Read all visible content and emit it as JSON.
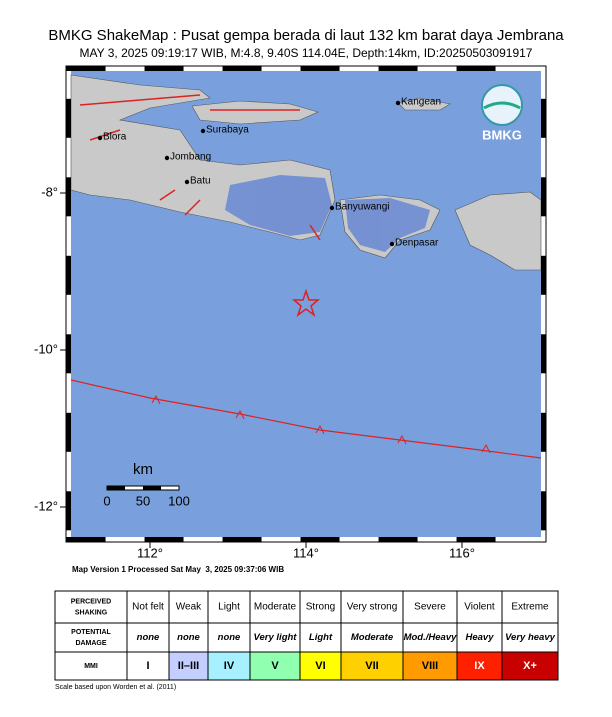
{
  "header": {
    "title": "BMKG ShakeMap : Pusat gempa berada di laut 132 km barat daya Jembrana",
    "subtitle": "MAY 3, 2025 09:19:17 WIB, M:4.8, 9.40S 114.04E, Depth:14km, ID:20250503091917"
  },
  "map": {
    "lat_ticks": [
      {
        "value": -8,
        "label": "-8°"
      },
      {
        "value": -10,
        "label": "-10°"
      },
      {
        "value": -12,
        "label": "-12°"
      }
    ],
    "lon_ticks": [
      {
        "value": 112,
        "label": "112°"
      },
      {
        "value": 114,
        "label": "114°"
      },
      {
        "value": 116,
        "label": "116°"
      }
    ],
    "places": [
      "Blora",
      "Surabaya",
      "Jombang",
      "Batu",
      "Banyuwangi",
      "Denpasar",
      "Kangean"
    ],
    "logo": "BMKG",
    "scale_unit": "km",
    "scale_ticks": [
      0,
      50,
      100
    ]
  },
  "version": "Map Version 1 Processed Sat May  3, 2025 09:37:06 WIB",
  "legend": {
    "row_labels": [
      [
        "PERCEIVED",
        "SHAKING"
      ],
      [
        "POTENTIAL",
        "DAMAGE"
      ],
      [
        "MMI"
      ]
    ],
    "shaking": [
      "Not felt",
      "Weak",
      "Light",
      "Moderate",
      "Strong",
      "Very strong",
      "Severe",
      "Violent",
      "Extreme"
    ],
    "damage": [
      "none",
      "none",
      "none",
      "Very light",
      "Light",
      "Moderate",
      "Mod./Heavy",
      "Heavy",
      "Very heavy"
    ],
    "mmi": [
      "I",
      "II–III",
      "IV",
      "V",
      "VI",
      "VII",
      "VIII",
      "IX",
      "X+"
    ],
    "mmi_colors": [
      "#ffffff",
      "#c4cfff",
      "#a6f0ff",
      "#90ffb0",
      "#ffff00",
      "#ffd000",
      "#ff9a00",
      "#ff2000",
      "#c80000"
    ]
  },
  "footnote": "Scale based upon Worden et al. (2011)"
}
